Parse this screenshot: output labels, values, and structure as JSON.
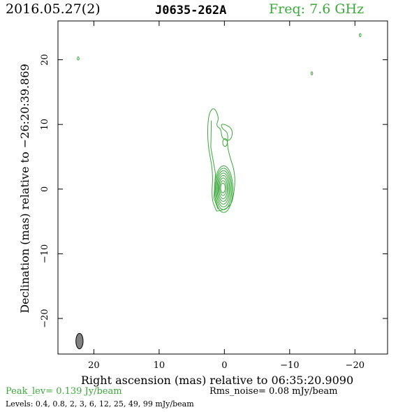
{
  "header": {
    "date": "2016.05.27(2)",
    "source": "J0635-262A",
    "freq": "Freq: 7.6 GHz"
  },
  "colors": {
    "contour": "#3aa83a",
    "beam": "#808080",
    "axis": "#000000"
  },
  "chart_data": {
    "type": "contour",
    "xlabel": "Right ascension (mas) relative to 06:35:20.9090",
    "ylabel": "Declination (mas) relative to −26:20:39.869",
    "xlim": [
      25.5,
      -25
    ],
    "ylim": [
      -25.5,
      26
    ],
    "xticks": [
      20,
      10,
      0,
      -10,
      -20
    ],
    "xtick_labels": [
      "20",
      "10",
      "0",
      "−10",
      "−20"
    ],
    "yticks": [
      20,
      10,
      0,
      -10,
      -20
    ],
    "ytick_labels": [
      "20",
      "10",
      "0",
      "−10",
      "−20"
    ],
    "core": {
      "x": 0.1,
      "y": 0.0,
      "rings": [
        [
          1.4,
          3.6
        ],
        [
          1.25,
          3.2
        ],
        [
          1.1,
          2.8
        ],
        [
          0.95,
          2.4
        ],
        [
          0.8,
          2.0
        ],
        [
          0.65,
          1.6
        ],
        [
          0.5,
          1.15
        ],
        [
          0.35,
          0.75
        ]
      ]
    },
    "jet_outer": [
      [
        1.2,
        -3.4
      ],
      [
        2.0,
        -1.5
      ],
      [
        1.7,
        2.6
      ],
      [
        2.6,
        7.0
      ],
      [
        2.5,
        11.5
      ],
      [
        1.6,
        12.8
      ],
      [
        0.8,
        11.0
      ],
      [
        1.3,
        9.8
      ],
      [
        0.5,
        9.3
      ],
      [
        0.4,
        7.8
      ],
      [
        -0.8,
        7.4
      ],
      [
        -1.3,
        8.5
      ],
      [
        -1.0,
        9.6
      ],
      [
        0.5,
        10.2
      ],
      [
        0.4,
        9.4
      ],
      [
        -0.6,
        8.7
      ],
      [
        -0.4,
        6.8
      ],
      [
        -0.9,
        4.8
      ],
      [
        -1.6,
        2.6
      ],
      [
        -1.6,
        0.0
      ],
      [
        -0.9,
        -3.2
      ]
    ],
    "jet_blob": {
      "x": -0.1,
      "y": 7.2,
      "rx": 0.35,
      "ry": 0.6
    },
    "specks": [
      [
        22.4,
        20.2
      ],
      [
        -20.8,
        23.8
      ],
      [
        -13.4,
        17.9
      ]
    ],
    "beam": {
      "x": 22.2,
      "y": -23.5,
      "rx": 0.55,
      "ry": 1.2
    },
    "peak_label": "Peak_lev=  0.139 Jy/beam",
    "rms_label": "Rms_noise= 0.08 mJy/beam",
    "levels_label": "Levels: 0.4, 0.8,   2,   3,   6,  12,  25,  49,  99 mJy/beam"
  }
}
